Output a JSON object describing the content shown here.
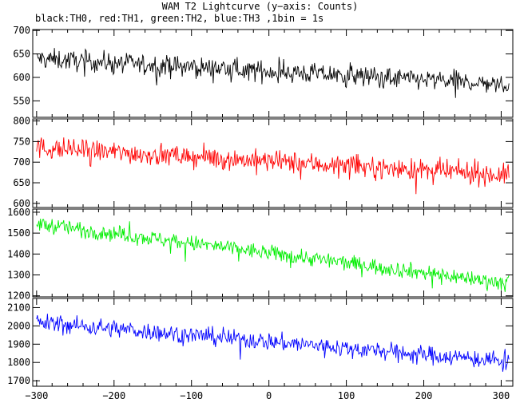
{
  "title": "WAM T2 Lightcurve (y−axis: Counts)",
  "subtitle": "black:TH0, red:TH1, green:TH2, blue:TH3 ,1bin = 1s",
  "chart_data": {
    "type": "line",
    "x_range": [
      -305,
      315
    ],
    "x_ticks": [
      -300,
      -200,
      -100,
      0,
      100,
      200,
      300
    ],
    "x_tick_labels": [
      "−300",
      "−200",
      "−100",
      "0",
      "100",
      "200",
      "300"
    ],
    "grid": false,
    "panels": [
      {
        "name": "TH0",
        "color": "#000000",
        "ylim": [
          515,
          702
        ],
        "y_ticks": [
          550,
          600,
          650,
          700
        ],
        "y_tick_labels": [
          "550",
          "600",
          "650",
          "700"
        ],
        "trend_start": 640,
        "trend_end": 585,
        "noise": 20,
        "clip": [
          520,
          700
        ]
      },
      {
        "name": "TH1",
        "color": "#ff0000",
        "ylim": [
          590,
          805
        ],
        "y_ticks": [
          600,
          650,
          700,
          750,
          800
        ],
        "y_tick_labels": [
          "600",
          "650",
          "700",
          "750",
          "800"
        ],
        "trend_start": 735,
        "trend_end": 668,
        "noise": 24,
        "clip": [
          595,
          800
        ]
      },
      {
        "name": "TH2",
        "color": "#00ee00",
        "ylim": [
          1195,
          1615
        ],
        "y_ticks": [
          1200,
          1300,
          1400,
          1500,
          1600
        ],
        "y_tick_labels": [
          "1200",
          "1300",
          "1400",
          "1500",
          "1600"
        ],
        "trend_start": 1545,
        "trend_end": 1260,
        "noise": 35,
        "clip": [
          1200,
          1610
        ]
      },
      {
        "name": "TH3",
        "color": "#0000ff",
        "ylim": [
          1670,
          2150
        ],
        "y_ticks": [
          1700,
          1800,
          1900,
          2000,
          2100
        ],
        "y_tick_labels": [
          "1700",
          "1800",
          "1900",
          "2000",
          "2100"
        ],
        "trend_start": 2020,
        "trend_end": 1805,
        "noise": 45,
        "clip": [
          1675,
          2145
        ]
      }
    ]
  }
}
